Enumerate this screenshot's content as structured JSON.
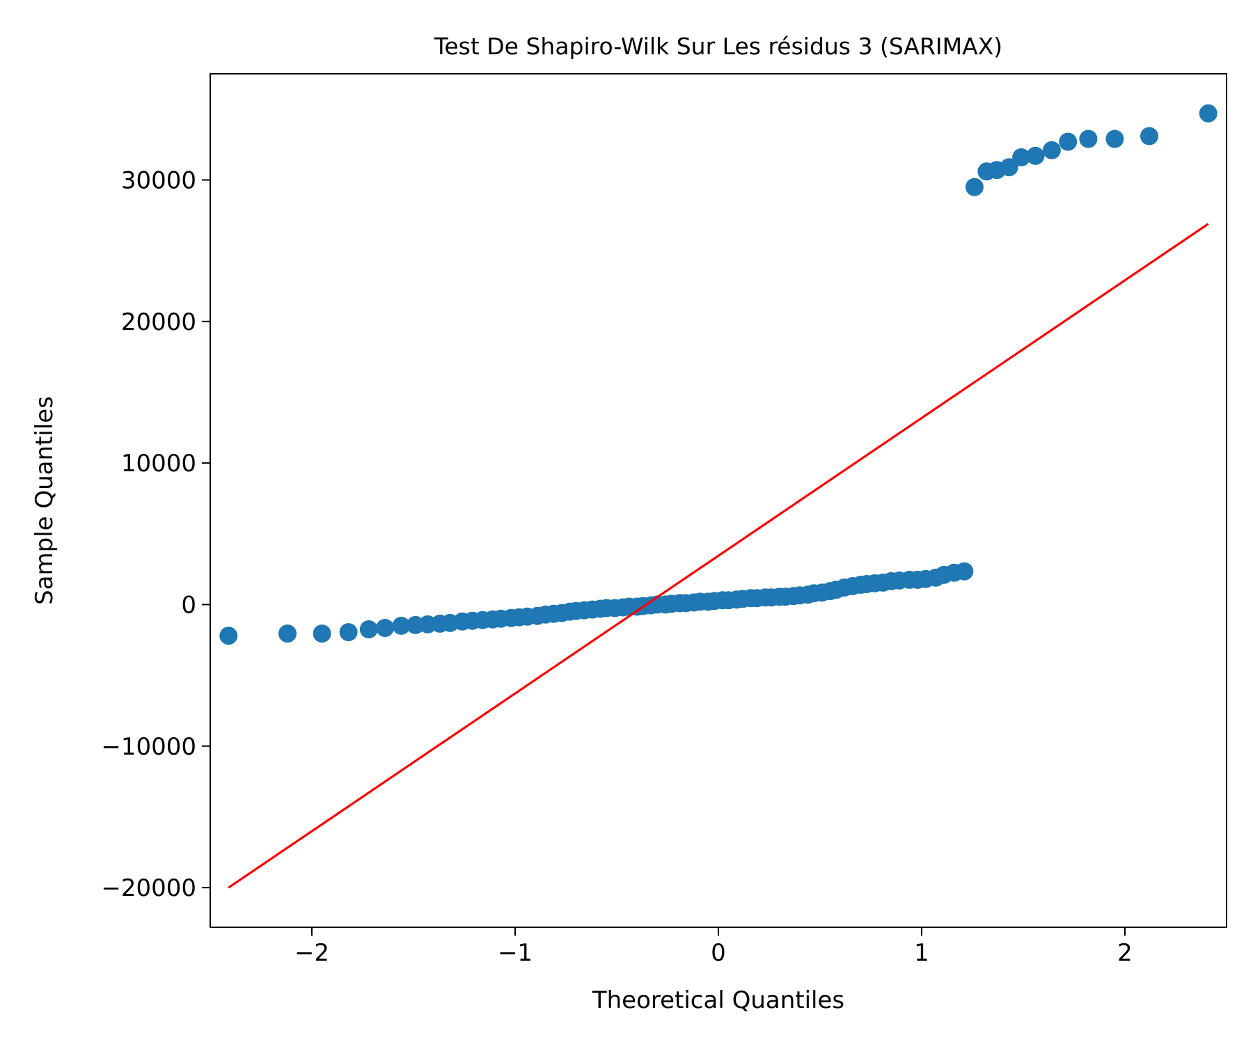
{
  "chart_data": {
    "type": "scatter",
    "title": "Test De Shapiro-Wilk Sur Les résidus 3 (SARIMAX)",
    "xlabel": "Theoretical Quantiles",
    "ylabel": "Sample Quantiles",
    "xlim": [
      -2.5,
      2.5
    ],
    "ylim": [
      -22800,
      37500
    ],
    "xticks": [
      -2,
      -1,
      0,
      1,
      2
    ],
    "xtick_labels": [
      "−2",
      "−1",
      "0",
      "1",
      "2"
    ],
    "yticks": [
      -20000,
      -10000,
      0,
      10000,
      20000,
      30000
    ],
    "ytick_labels": [
      "−20000",
      "−10000",
      "0",
      "10000",
      "20000",
      "30000"
    ],
    "grid": false,
    "legend": "none",
    "colors": {
      "points": "#1f77b4",
      "line": "#ff0000",
      "axes": "#000000"
    },
    "series": [
      {
        "type": "scatter",
        "x": [
          -2.41,
          -2.12,
          -1.95,
          -1.82,
          -1.72,
          -1.64,
          -1.56,
          -1.49,
          -1.43,
          -1.37,
          -1.32,
          -1.26,
          -1.21,
          -1.16,
          -1.11,
          -1.07,
          -1.02,
          -0.98,
          -0.94,
          -0.89,
          -0.85,
          -0.81,
          -0.77,
          -0.73,
          -0.7,
          -0.66,
          -0.62,
          -0.58,
          -0.55,
          -0.51,
          -0.47,
          -0.44,
          -0.4,
          -0.37,
          -0.33,
          -0.3,
          -0.26,
          -0.23,
          -0.19,
          -0.16,
          -0.12,
          -0.09,
          -0.05,
          -0.02,
          0.02,
          0.05,
          0.09,
          0.12,
          0.16,
          0.19,
          0.23,
          0.26,
          0.3,
          0.33,
          0.37,
          0.4,
          0.44,
          0.47,
          0.51,
          0.55,
          0.58,
          0.62,
          0.66,
          0.7,
          0.73,
          0.77,
          0.81,
          0.85,
          0.89,
          0.94,
          0.98,
          1.02,
          1.07,
          1.11,
          1.16,
          1.21,
          1.26,
          1.32,
          1.37,
          1.43,
          1.49,
          1.56,
          1.64,
          1.72,
          1.82,
          1.95,
          2.12,
          2.41
        ],
        "y": [
          -2200,
          -2050,
          -2050,
          -1950,
          -1750,
          -1650,
          -1500,
          -1450,
          -1400,
          -1350,
          -1300,
          -1200,
          -1150,
          -1100,
          -1050,
          -1000,
          -950,
          -900,
          -850,
          -800,
          -700,
          -650,
          -600,
          -500,
          -450,
          -400,
          -350,
          -300,
          -250,
          -250,
          -200,
          -150,
          -150,
          -100,
          -50,
          0,
          0,
          50,
          100,
          100,
          150,
          200,
          200,
          250,
          300,
          300,
          350,
          400,
          450,
          450,
          500,
          500,
          550,
          550,
          600,
          650,
          700,
          800,
          850,
          950,
          1050,
          1200,
          1300,
          1400,
          1450,
          1500,
          1550,
          1650,
          1700,
          1750,
          1750,
          1800,
          1900,
          2100,
          2250,
          2350,
          29500,
          30600,
          30700,
          30900,
          31600,
          31700,
          32100,
          32700,
          32900,
          32900,
          33100,
          34700
        ]
      },
      {
        "type": "line",
        "x": [
          -2.41,
          2.41
        ],
        "y": [
          -20000,
          26900
        ]
      }
    ]
  }
}
